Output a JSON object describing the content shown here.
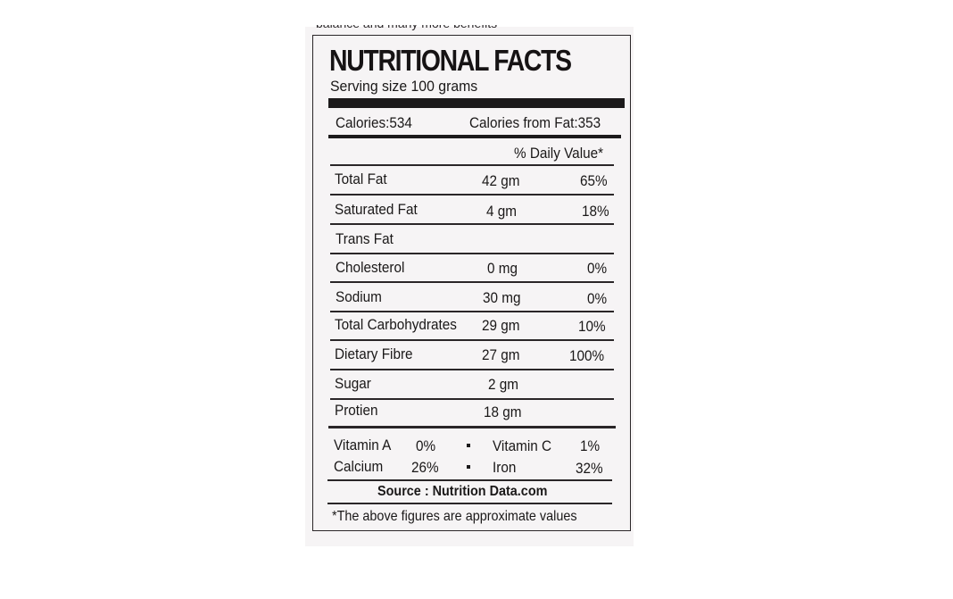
{
  "label": {
    "cutoff_text": "balance and many more benefits",
    "title": "NUTRITIONAL FACTS",
    "serving_size": "Serving size 100 grams",
    "calories": "Calories:534",
    "calories_from_fat": "Calories from Fat:353",
    "daily_value_header": "% Daily Value*",
    "nutrients": [
      {
        "name": "Total Fat",
        "amount": "42 gm",
        "dv": "65%"
      },
      {
        "name": "Saturated Fat",
        "amount": "4 gm",
        "dv": "18%"
      },
      {
        "name": "Trans Fat",
        "amount": "",
        "dv": ""
      },
      {
        "name": "Cholesterol",
        "amount": "0 mg",
        "dv": "0%"
      },
      {
        "name": "Sodium",
        "amount": "30 mg",
        "dv": "0%"
      },
      {
        "name": "Total Carbohydrates",
        "amount": "29 gm",
        "dv": "10%"
      },
      {
        "name": "Dietary Fibre",
        "amount": "27 gm",
        "dv": "100%"
      },
      {
        "name": "Sugar",
        "amount": "2 gm",
        "dv": ""
      },
      {
        "name": "Protien",
        "amount": "18 gm",
        "dv": ""
      }
    ],
    "vitamins": [
      {
        "name": "Vitamin A",
        "value": "0%"
      },
      {
        "name": "Vitamin C",
        "value": "1%"
      },
      {
        "name": "Calcium",
        "value": "26%"
      },
      {
        "name": "Iron",
        "value": "32%"
      }
    ],
    "source": "Source : Nutrition Data.com",
    "footnote": "*The above figures are approximate values"
  }
}
